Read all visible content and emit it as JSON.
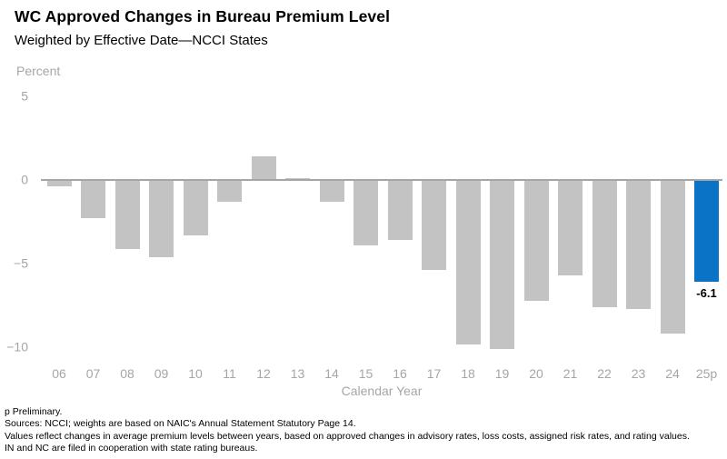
{
  "chart_data": {
    "type": "bar",
    "title": "WC Approved Changes in Bureau Premium Level",
    "subtitle": "Weighted by Effective Date—NCCI States",
    "unit_label": "Percent",
    "xlabel": "Calendar Year",
    "categories": [
      "06",
      "07",
      "08",
      "09",
      "10",
      "11",
      "12",
      "13",
      "14",
      "15",
      "16",
      "17",
      "18",
      "19",
      "20",
      "21",
      "22",
      "23",
      "24",
      "25p"
    ],
    "values": [
      -0.4,
      -2.3,
      -4.1,
      -4.6,
      -3.3,
      -1.3,
      1.4,
      0.1,
      -1.3,
      -3.9,
      -3.6,
      -5.4,
      -9.8,
      -10.1,
      -7.2,
      -5.7,
      -7.6,
      -7.7,
      -9.2,
      -6.1
    ],
    "yticks": [
      {
        "value": 5,
        "label": "5"
      },
      {
        "value": 0,
        "label": "0"
      },
      {
        "value": -5,
        "label": "−5"
      },
      {
        "value": -10,
        "label": "−10"
      }
    ],
    "ylim": [
      -10.8,
      5
    ],
    "grid": false,
    "legend": "none",
    "highlight": {
      "category": "25p",
      "index": 19,
      "label": "-6.1"
    },
    "colors": {
      "bar": "#c3c3c3",
      "highlight": "#0a73c5",
      "axis_line": "#a6a6a6",
      "tick_text": "#a6a6a6",
      "text": "#000000"
    }
  },
  "footnotes": [
    "p Preliminary.",
    "Sources: NCCI; weights are based on NAIC's Annual Statement Statutory Page 14.",
    "Values reflect changes in average premium levels between years, based on approved changes in advisory rates, loss costs, assigned risk rates, and rating values.",
    "IN and NC are filed in cooperation with state rating bureaus."
  ]
}
